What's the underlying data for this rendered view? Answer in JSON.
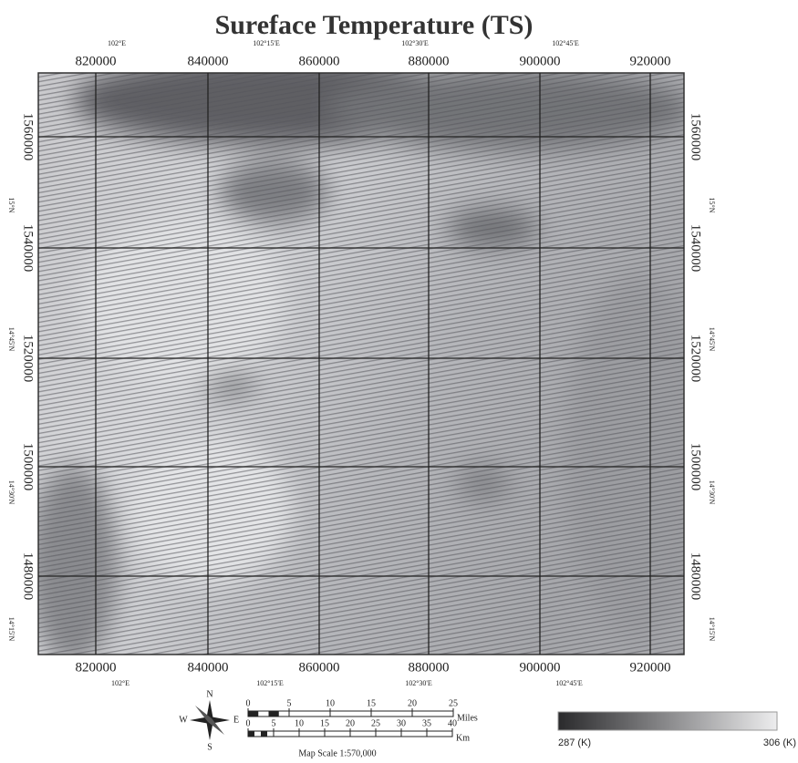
{
  "title": "Sureface Temperature (TS)",
  "projected_x_labels": [
    "820000",
    "840000",
    "860000",
    "880000",
    "900000",
    "920000"
  ],
  "geographic_x_labels": [
    "102°E",
    "102°15'E",
    "102°30'E",
    "102°45'E"
  ],
  "projected_y_labels": [
    "1560000",
    "1540000",
    "1520000",
    "1500000",
    "1480000"
  ],
  "geographic_y_labels": [
    "15°N",
    "14°45'N",
    "14°30'N",
    "14°15'N"
  ],
  "compass": {
    "n": "N",
    "s": "S",
    "e": "E",
    "w": "W"
  },
  "scale_bar": {
    "miles_ticks": [
      "0",
      "5",
      "10",
      "15",
      "20",
      "25"
    ],
    "miles_unit": "Miles",
    "km_ticks": [
      "0",
      "5",
      "10",
      "15",
      "20",
      "25",
      "30",
      "35",
      "40"
    ],
    "km_unit": "Km",
    "map_scale": "Map Scale 1:570,000"
  },
  "legend": {
    "min_label": "287 (K)",
    "max_label": "306 (K)"
  }
}
